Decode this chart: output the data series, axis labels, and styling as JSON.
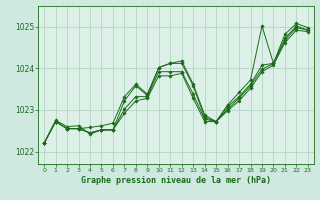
{
  "title": "Graphe pression niveau de la mer (hPa)",
  "bg_color": "#cfe8e0",
  "plot_bg_color": "#ddf0e8",
  "line_color": "#1a6b1a",
  "grid_color": "#aacfbf",
  "xlim": [
    -0.5,
    23.5
  ],
  "ylim": [
    1021.7,
    1025.5
  ],
  "yticks": [
    1022,
    1023,
    1024,
    1025
  ],
  "xticks": [
    0,
    1,
    2,
    3,
    4,
    5,
    6,
    7,
    8,
    9,
    10,
    11,
    12,
    13,
    14,
    15,
    16,
    17,
    18,
    19,
    20,
    21,
    22,
    23
  ],
  "series": [
    [
      1022.2,
      1022.75,
      1022.6,
      1022.62,
      1022.42,
      1022.52,
      1022.52,
      1023.22,
      1023.58,
      1023.35,
      1024.02,
      1024.12,
      1024.12,
      1023.58,
      1022.82,
      1022.72,
      1023.08,
      1023.32,
      1023.62,
      1024.08,
      1024.12,
      1024.72,
      1025.02,
      1024.92
    ],
    [
      1022.2,
      1022.72,
      1022.55,
      1022.55,
      1022.45,
      1022.52,
      1022.52,
      1023.02,
      1023.32,
      1023.32,
      1023.92,
      1023.92,
      1023.92,
      1023.38,
      1022.78,
      1022.72,
      1023.02,
      1023.28,
      1023.58,
      1023.98,
      1024.12,
      1024.68,
      1024.98,
      1024.92
    ],
    [
      1022.2,
      1022.72,
      1022.55,
      1022.55,
      1022.45,
      1022.52,
      1022.52,
      1022.92,
      1023.22,
      1023.28,
      1023.82,
      1023.82,
      1023.88,
      1023.28,
      1022.72,
      1022.72,
      1022.98,
      1023.22,
      1023.52,
      1023.92,
      1024.08,
      1024.62,
      1024.92,
      1024.88
    ],
    [
      1022.2,
      1022.72,
      1022.55,
      1022.55,
      1022.58,
      1022.62,
      1022.68,
      1023.32,
      1023.62,
      1023.38,
      1024.02,
      1024.12,
      1024.18,
      1023.62,
      1022.88,
      1022.72,
      1023.12,
      1023.42,
      1023.72,
      1025.02,
      1024.12,
      1024.82,
      1025.08,
      1024.98
    ]
  ]
}
